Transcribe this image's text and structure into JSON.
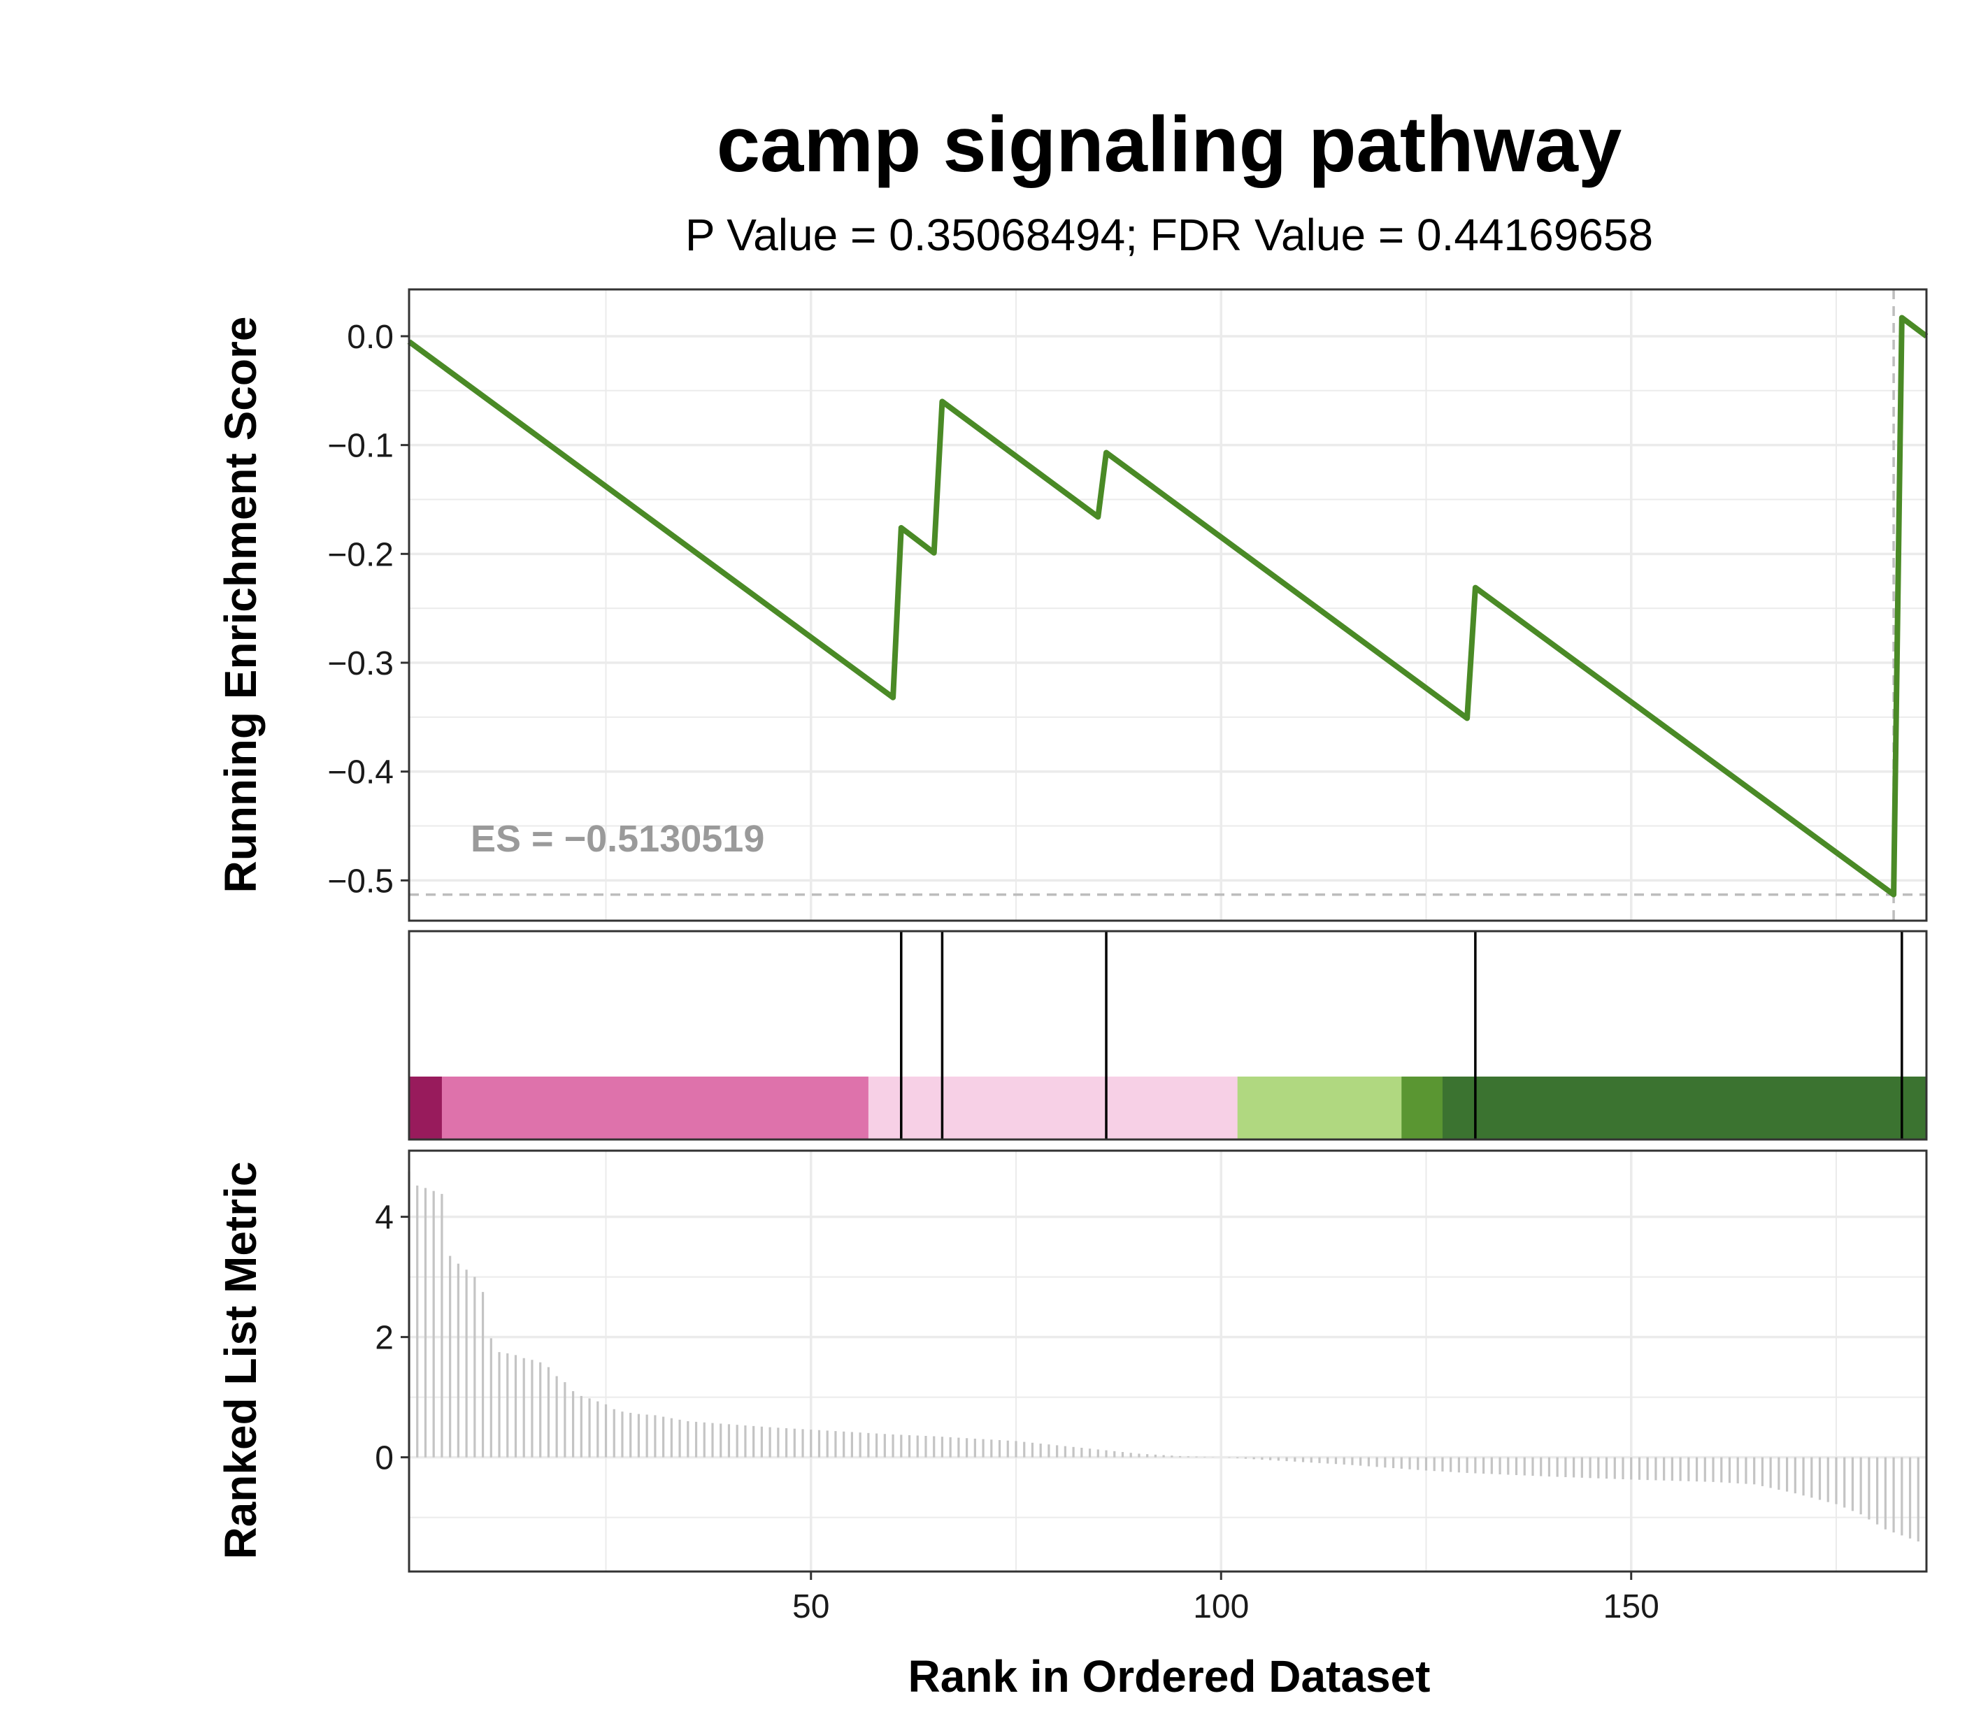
{
  "chart_data": {
    "type": "line",
    "title": "camp signaling pathway",
    "subtitle": "P Value = 0.35068494; FDR Value = 0.44169658",
    "ylabel_top": "Running Enrichment Score",
    "ylabel_bottom": "Ranked List Metric",
    "xlabel": "Rank in Ordered Dataset",
    "es_label": "ES = −0.5130519",
    "es_value": -0.5130519,
    "es_rank": 182,
    "xlim": [
      1,
      186
    ],
    "x_ticks": [
      50,
      100,
      150
    ],
    "x_tick_labels": [
      "50",
      "100",
      "150"
    ],
    "top_ylim": [
      -0.537,
      0.043
    ],
    "top_y_ticks": [
      0.0,
      -0.1,
      -0.2,
      -0.3,
      -0.4,
      -0.5
    ],
    "top_y_tick_labels": [
      "0.0",
      "−0.1",
      "−0.2",
      "−0.3",
      "−0.4",
      "−0.5"
    ],
    "bottom_ylim": [
      -1.9,
      5.1
    ],
    "bottom_y_ticks": [
      0,
      2,
      4
    ],
    "bottom_y_tick_labels": [
      "0",
      "2",
      "4"
    ],
    "grid": true,
    "line_color": "#4a8a26",
    "running_es": [
      {
        "x": 1,
        "y": -0.005
      },
      {
        "x": 60,
        "y": -0.332
      },
      {
        "x": 61,
        "y": -0.176
      },
      {
        "x": 65,
        "y": -0.199
      },
      {
        "x": 66,
        "y": -0.06
      },
      {
        "x": 85,
        "y": -0.166
      },
      {
        "x": 86,
        "y": -0.107
      },
      {
        "x": 130,
        "y": -0.351
      },
      {
        "x": 131,
        "y": -0.231
      },
      {
        "x": 182,
        "y": -0.513
      },
      {
        "x": 183,
        "y": 0.017
      },
      {
        "x": 186,
        "y": 0.0
      }
    ],
    "hit_ranks": [
      61,
      66,
      86,
      131,
      183
    ],
    "color_bands": [
      {
        "from": 1,
        "to": 5,
        "color": "#981b5c"
      },
      {
        "from": 5,
        "to": 57,
        "color": "#de72ab"
      },
      {
        "from": 57,
        "to": 102,
        "color": "#f7d0e6"
      },
      {
        "from": 102,
        "to": 122,
        "color": "#b0d880"
      },
      {
        "from": 122,
        "to": 127,
        "color": "#5a9632"
      },
      {
        "from": 127,
        "to": 186,
        "color": "#3b7330"
      }
    ],
    "ranked_metric_anchors": [
      [
        1,
        4.75
      ],
      [
        2,
        4.52
      ],
      [
        3,
        4.48
      ],
      [
        4,
        4.43
      ],
      [
        5,
        4.38
      ],
      [
        6,
        3.35
      ],
      [
        7,
        3.22
      ],
      [
        8,
        3.12
      ],
      [
        9,
        3.0
      ],
      [
        10,
        2.75
      ],
      [
        11,
        1.98
      ],
      [
        12,
        1.75
      ],
      [
        13,
        1.73
      ],
      [
        14,
        1.7
      ],
      [
        15,
        1.65
      ],
      [
        16,
        1.62
      ],
      [
        17,
        1.58
      ],
      [
        18,
        1.5
      ],
      [
        19,
        1.35
      ],
      [
        20,
        1.25
      ],
      [
        21,
        1.1
      ],
      [
        22,
        1.02
      ],
      [
        23,
        0.98
      ],
      [
        24,
        0.93
      ],
      [
        25,
        0.88
      ],
      [
        26,
        0.8
      ],
      [
        27,
        0.76
      ],
      [
        28,
        0.74
      ],
      [
        29,
        0.72
      ],
      [
        30,
        0.71
      ],
      [
        31,
        0.7
      ],
      [
        33,
        0.65
      ],
      [
        35,
        0.6
      ],
      [
        40,
        0.55
      ],
      [
        45,
        0.5
      ],
      [
        50,
        0.46
      ],
      [
        55,
        0.42
      ],
      [
        60,
        0.38
      ],
      [
        65,
        0.35
      ],
      [
        70,
        0.31
      ],
      [
        75,
        0.27
      ],
      [
        80,
        0.2
      ],
      [
        85,
        0.13
      ],
      [
        90,
        0.06
      ],
      [
        95,
        0.02
      ],
      [
        100,
        0.0
      ],
      [
        105,
        -0.04
      ],
      [
        110,
        -0.08
      ],
      [
        115,
        -0.12
      ],
      [
        120,
        -0.17
      ],
      [
        125,
        -0.22
      ],
      [
        130,
        -0.26
      ],
      [
        140,
        -0.32
      ],
      [
        150,
        -0.37
      ],
      [
        160,
        -0.41
      ],
      [
        165,
        -0.45
      ],
      [
        170,
        -0.6
      ],
      [
        175,
        -0.78
      ],
      [
        178,
        -0.95
      ],
      [
        181,
        -1.2
      ],
      [
        183,
        -1.3
      ],
      [
        185,
        -1.4
      ]
    ],
    "colors": {
      "panel_border": "#333333",
      "grid": "#ebebeb",
      "es_dashed": "#bdbdbd",
      "metric_bar": "#c4c4c4",
      "hit_line": "#000000"
    }
  }
}
